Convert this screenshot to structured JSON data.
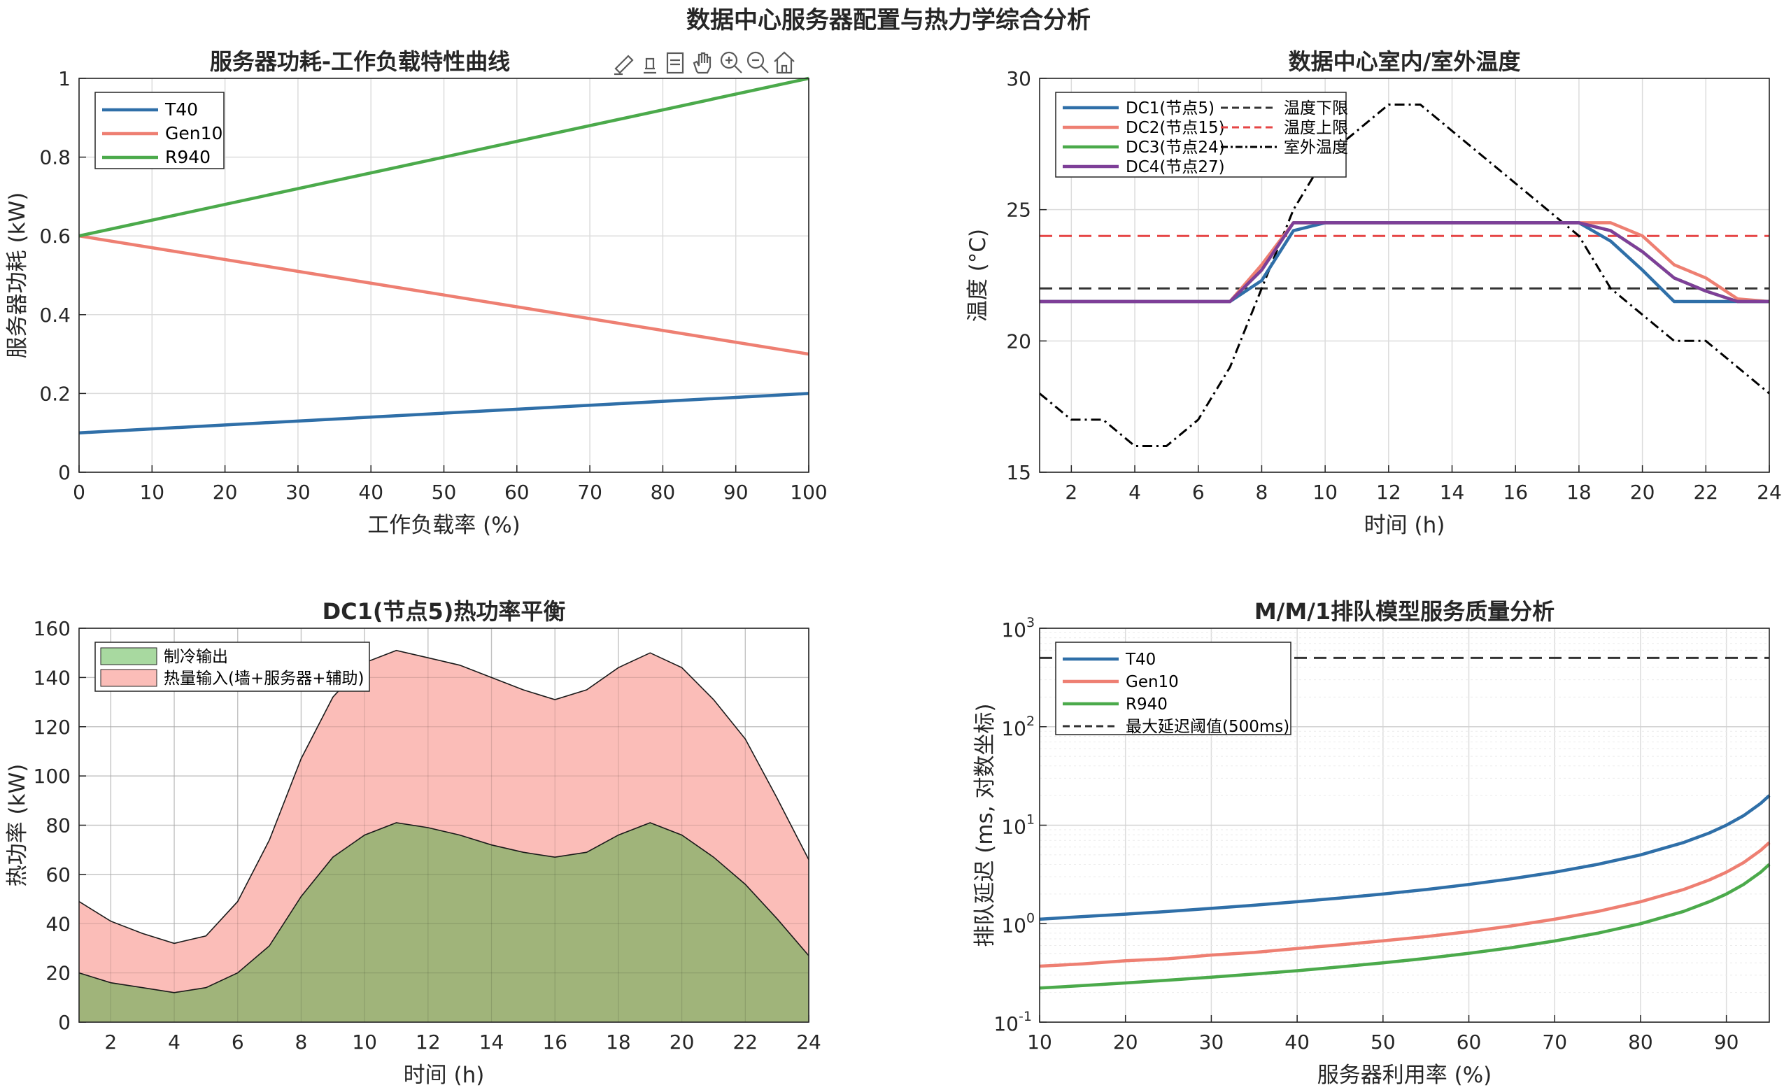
{
  "figure": {
    "suptitle": "数据中心服务器配置与热力学综合分析"
  },
  "toolbar": {
    "icons": [
      "brush-icon",
      "eraser-icon",
      "datatip-icon",
      "pan-hand-icon",
      "zoom-in-icon",
      "zoom-out-icon",
      "home-icon"
    ]
  },
  "colors": {
    "blue": "#2F6FA8",
    "salmon": "#EE7F72",
    "green": "#4BAA4B",
    "purple": "#7E3F98",
    "dark": "#333333",
    "red_dash": "#E64545",
    "heat_fill": "#FBBDB8",
    "cool_fill": "#A0B47A",
    "legend_cool": "#A8D9A0"
  },
  "chart_data": [
    {
      "id": "power",
      "type": "line",
      "title": "服务器功耗-工作负载特性曲线",
      "xlabel": "工作负载率 (%)",
      "ylabel": "服务器功耗 (kW)",
      "xlim": [
        0,
        100
      ],
      "ylim": [
        0,
        1
      ],
      "xticks": [
        "0",
        "10",
        "20",
        "30",
        "40",
        "50",
        "60",
        "70",
        "80",
        "90",
        "100"
      ],
      "yticks": [
        "0",
        "0.2",
        "0.4",
        "0.6",
        "0.8",
        "1"
      ],
      "grid": true,
      "legend_position": "top-left",
      "x": [
        0,
        100
      ],
      "series": [
        {
          "name": "T40",
          "color": "#2F6FA8",
          "values": [
            0.1,
            0.2
          ]
        },
        {
          "name": "Gen10",
          "color": "#EE7F72",
          "values": [
            0.6,
            0.3
          ]
        },
        {
          "name": "R940",
          "color": "#4BAA4B",
          "values": [
            0.6,
            1.0
          ]
        }
      ]
    },
    {
      "id": "temperature",
      "type": "line",
      "title": "数据中心室内/室外温度",
      "xlabel": "时间 (h)",
      "ylabel": "温度 (°C)",
      "xlim": [
        1,
        24
      ],
      "ylim": [
        15,
        30
      ],
      "xticks": [
        "2",
        "4",
        "6",
        "8",
        "10",
        "12",
        "14",
        "16",
        "18",
        "20",
        "22",
        "24"
      ],
      "yticks": [
        "15",
        "20",
        "25",
        "30"
      ],
      "grid": true,
      "legend_position": "top-left",
      "x": [
        1,
        2,
        3,
        4,
        5,
        6,
        7,
        8,
        9,
        10,
        11,
        12,
        13,
        14,
        15,
        16,
        17,
        18,
        19,
        20,
        21,
        22,
        23,
        24
      ],
      "series": [
        {
          "name": "DC1(节点5)",
          "color": "#2F6FA8",
          "style": "solid",
          "values": [
            21.5,
            21.5,
            21.5,
            21.5,
            21.5,
            21.5,
            21.5,
            22.3,
            24.2,
            24.5,
            24.5,
            24.5,
            24.5,
            24.5,
            24.5,
            24.5,
            24.5,
            24.5,
            23.8,
            22.7,
            21.5,
            21.5,
            21.5,
            21.5
          ]
        },
        {
          "name": "DC2(节点15)",
          "color": "#EE7F72",
          "style": "solid",
          "values": [
            21.5,
            21.5,
            21.5,
            21.5,
            21.5,
            21.5,
            21.5,
            22.9,
            24.5,
            24.5,
            24.5,
            24.5,
            24.5,
            24.5,
            24.5,
            24.5,
            24.5,
            24.5,
            24.5,
            24.0,
            22.9,
            22.4,
            21.6,
            21.5
          ]
        },
        {
          "name": "DC3(节点24)",
          "color": "#4BAA4B",
          "style": "solid",
          "values": [
            21.5,
            21.5,
            21.5,
            21.5,
            21.5,
            21.5,
            21.5,
            22.7,
            24.5,
            24.5,
            24.5,
            24.5,
            24.5,
            24.5,
            24.5,
            24.5,
            24.5,
            24.5,
            24.2,
            23.4,
            22.4,
            21.9,
            21.5,
            21.5
          ]
        },
        {
          "name": "DC4(节点27)",
          "color": "#7E3F98",
          "style": "solid",
          "values": [
            21.5,
            21.5,
            21.5,
            21.5,
            21.5,
            21.5,
            21.5,
            22.7,
            24.5,
            24.5,
            24.5,
            24.5,
            24.5,
            24.5,
            24.5,
            24.5,
            24.5,
            24.5,
            24.2,
            23.4,
            22.4,
            21.9,
            21.5,
            21.5
          ]
        },
        {
          "name": "温度下限",
          "color": "#333333",
          "style": "dash",
          "values": [
            22,
            22,
            22,
            22,
            22,
            22,
            22,
            22,
            22,
            22,
            22,
            22,
            22,
            22,
            22,
            22,
            22,
            22,
            22,
            22,
            22,
            22,
            22,
            22
          ]
        },
        {
          "name": "温度上限",
          "color": "#E64545",
          "style": "dash",
          "values": [
            24,
            24,
            24,
            24,
            24,
            24,
            24,
            24,
            24,
            24,
            24,
            24,
            24,
            24,
            24,
            24,
            24,
            24,
            24,
            24,
            24,
            24,
            24,
            24
          ]
        },
        {
          "name": "室外温度",
          "color": "#000000",
          "style": "dashdot",
          "values": [
            18,
            17,
            17,
            16,
            16,
            17,
            19,
            22,
            25,
            27,
            28,
            29,
            29,
            28,
            27,
            26,
            25,
            24,
            22,
            21,
            20,
            20,
            19,
            18
          ]
        }
      ]
    },
    {
      "id": "heat",
      "type": "area",
      "title": "DC1(节点5)热功率平衡",
      "xlabel": "时间 (h)",
      "ylabel": "热功率 (kW)",
      "xlim": [
        1,
        24
      ],
      "ylim": [
        0,
        160
      ],
      "xticks": [
        "2",
        "4",
        "6",
        "8",
        "10",
        "12",
        "14",
        "16",
        "18",
        "20",
        "22",
        "24"
      ],
      "yticks": [
        "0",
        "20",
        "40",
        "60",
        "80",
        "100",
        "120",
        "140",
        "160"
      ],
      "grid": true,
      "legend_position": "top-left",
      "x": [
        1,
        2,
        3,
        4,
        5,
        6,
        7,
        8,
        9,
        10,
        11,
        12,
        13,
        14,
        15,
        16,
        17,
        18,
        19,
        20,
        21,
        22,
        23,
        24
      ],
      "series": [
        {
          "name": "制冷输出",
          "color": "#A0B47A",
          "values": [
            20,
            16,
            14,
            12,
            14,
            20,
            31,
            51,
            67,
            76,
            81,
            79,
            76,
            72,
            69,
            67,
            69,
            76,
            81,
            76,
            67,
            56,
            42,
            27
          ]
        },
        {
          "name": "热量输入(墙+服务器+辅助)",
          "color": "#FBBDB8",
          "values": [
            49,
            41,
            36,
            32,
            35,
            49,
            74,
            107,
            132,
            146,
            151,
            148,
            145,
            140,
            135,
            131,
            135,
            144,
            150,
            144,
            131,
            115,
            91,
            66
          ]
        }
      ]
    },
    {
      "id": "queue",
      "type": "line",
      "title": "M/M/1排队模型服务质量分析",
      "xlabel": "服务器利用率 (%)",
      "ylabel": "排队延迟 (ms, 对数坐标)",
      "xscale": "linear",
      "yscale": "log",
      "xlim": [
        10,
        95
      ],
      "ylim": [
        0.1,
        1000
      ],
      "xticks": [
        "10",
        "20",
        "30",
        "40",
        "50",
        "60",
        "70",
        "80",
        "90"
      ],
      "yticks": [
        {
          "base": "10",
          "exp": "-1"
        },
        {
          "base": "10",
          "exp": "0"
        },
        {
          "base": "10",
          "exp": "1"
        },
        {
          "base": "10",
          "exp": "2"
        },
        {
          "base": "10",
          "exp": "3"
        }
      ],
      "grid": true,
      "legend_position": "top-left",
      "x": [
        10,
        15,
        20,
        25,
        30,
        35,
        40,
        45,
        50,
        55,
        60,
        65,
        70,
        75,
        80,
        85,
        88,
        90,
        92,
        94,
        95
      ],
      "series": [
        {
          "name": "T40",
          "color": "#2F6FA8",
          "style": "solid",
          "values": [
            1.11,
            1.18,
            1.25,
            1.33,
            1.43,
            1.54,
            1.67,
            1.82,
            2.0,
            2.22,
            2.5,
            2.86,
            3.33,
            4.0,
            5.0,
            6.67,
            8.33,
            10.0,
            12.5,
            16.67,
            20.0
          ]
        },
        {
          "name": "Gen10",
          "color": "#EE7F72",
          "style": "solid",
          "values": [
            0.37,
            0.39,
            0.42,
            0.44,
            0.48,
            0.51,
            0.56,
            0.61,
            0.67,
            0.74,
            0.83,
            0.95,
            1.11,
            1.33,
            1.67,
            2.22,
            2.78,
            3.33,
            4.17,
            5.56,
            6.67
          ]
        },
        {
          "name": "R940",
          "color": "#4BAA4B",
          "style": "solid",
          "values": [
            0.222,
            0.235,
            0.25,
            0.267,
            0.286,
            0.308,
            0.333,
            0.364,
            0.4,
            0.444,
            0.5,
            0.571,
            0.667,
            0.8,
            1.0,
            1.33,
            1.67,
            2.0,
            2.5,
            3.33,
            4.0
          ]
        },
        {
          "name": "最大延迟阈值(500ms)",
          "color": "#333333",
          "style": "dash",
          "values": [
            500,
            500,
            500,
            500,
            500,
            500,
            500,
            500,
            500,
            500,
            500,
            500,
            500,
            500,
            500,
            500,
            500,
            500,
            500,
            500,
            500
          ]
        }
      ]
    }
  ]
}
